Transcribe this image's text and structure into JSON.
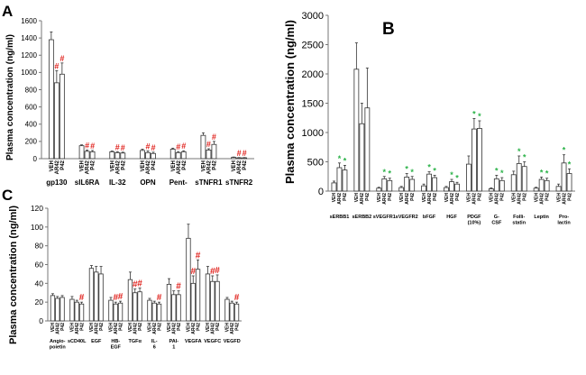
{
  "colors": {
    "hash": "#e0201b",
    "star": "#2db34a",
    "bar_stroke": "#333333",
    "error": "#333333"
  },
  "conditions": [
    "VEH",
    "AR42",
    "P42"
  ],
  "chart_data": [
    {
      "panel": "A",
      "type": "bar",
      "ylabel": "Plasma concentration (ng/ml)",
      "ylim": [
        0,
        1600
      ],
      "yticks": [
        0,
        200,
        400,
        600,
        800,
        1000,
        1200,
        1400,
        1600
      ],
      "categories": [
        "gp130",
        "sIL6RA",
        "IL-32",
        "OPN",
        "Pent-",
        "sTNFR1",
        "sTNFR2"
      ],
      "series": [
        {
          "name": "VEH",
          "values": [
            1380,
            150,
            80,
            95,
            110,
            270,
            15
          ],
          "errors": [
            90,
            10,
            8,
            15,
            12,
            30,
            4
          ]
        },
        {
          "name": "AR42",
          "values": [
            880,
            85,
            70,
            70,
            70,
            100,
            10
          ],
          "errors": [
            140,
            15,
            10,
            20,
            12,
            15,
            3
          ]
        },
        {
          "name": "P42",
          "values": [
            980,
            80,
            65,
            60,
            80,
            165,
            10
          ],
          "errors": [
            130,
            15,
            10,
            15,
            12,
            35,
            3
          ]
        }
      ],
      "markers": [
        {
          "cat": 0,
          "series": 1,
          "symbol": "#",
          "color": "hash"
        },
        {
          "cat": 0,
          "series": 2,
          "symbol": "#",
          "color": "hash"
        },
        {
          "cat": 1,
          "series": 1,
          "symbol": "#",
          "color": "hash"
        },
        {
          "cat": 1,
          "series": 2,
          "symbol": "#",
          "color": "hash"
        },
        {
          "cat": 2,
          "series": 1,
          "symbol": "#",
          "color": "hash"
        },
        {
          "cat": 2,
          "series": 2,
          "symbol": "#",
          "color": "hash"
        },
        {
          "cat": 3,
          "series": 1,
          "symbol": "#",
          "color": "hash"
        },
        {
          "cat": 3,
          "series": 2,
          "symbol": "#",
          "color": "hash"
        },
        {
          "cat": 4,
          "series": 1,
          "symbol": "#",
          "color": "hash"
        },
        {
          "cat": 4,
          "series": 2,
          "symbol": "#",
          "color": "hash"
        },
        {
          "cat": 5,
          "series": 1,
          "symbol": "#",
          "color": "hash"
        },
        {
          "cat": 5,
          "series": 2,
          "symbol": "#",
          "color": "hash"
        },
        {
          "cat": 6,
          "series": 1,
          "symbol": "#",
          "color": "hash"
        },
        {
          "cat": 6,
          "series": 2,
          "symbol": "#",
          "color": "hash"
        }
      ]
    },
    {
      "panel": "B",
      "type": "bar",
      "ylabel": "Plasma concentration (ng/ml)",
      "ylim": [
        0,
        3000
      ],
      "yticks": [
        0,
        500,
        1000,
        1500,
        2000,
        2500,
        3000
      ],
      "categories": [
        "sERBB1",
        "sERBB2",
        "sVEGFR1",
        "sVEGFR2",
        "bFGF",
        "HGF",
        "PDGF (10%)",
        "G-CSF",
        "Folli-statin",
        "Leptin",
        "Pro-lactin"
      ],
      "series": [
        {
          "name": "VEH",
          "values": [
            140,
            2080,
            50,
            60,
            90,
            60,
            460,
            40,
            280,
            50,
            80
          ],
          "errors": [
            30,
            450,
            15,
            20,
            30,
            20,
            140,
            15,
            60,
            15,
            40
          ]
        },
        {
          "name": "AR42",
          "values": [
            400,
            1150,
            210,
            240,
            290,
            160,
            1060,
            210,
            470,
            200,
            480
          ],
          "errors": [
            80,
            350,
            40,
            60,
            40,
            40,
            180,
            60,
            130,
            40,
            140
          ]
        },
        {
          "name": "P42",
          "values": [
            360,
            1420,
            180,
            200,
            230,
            120,
            1070,
            180,
            420,
            180,
            300
          ],
          "errors": [
            80,
            680,
            40,
            50,
            40,
            30,
            130,
            50,
            80,
            40,
            80
          ]
        }
      ],
      "markers": [
        {
          "cat": 0,
          "series": 1,
          "symbol": "*",
          "color": "star"
        },
        {
          "cat": 0,
          "series": 2,
          "symbol": "*",
          "color": "star"
        },
        {
          "cat": 2,
          "series": 1,
          "symbol": "*",
          "color": "star"
        },
        {
          "cat": 2,
          "series": 2,
          "symbol": "*",
          "color": "star"
        },
        {
          "cat": 3,
          "series": 1,
          "symbol": "*",
          "color": "star"
        },
        {
          "cat": 3,
          "series": 2,
          "symbol": "*",
          "color": "star"
        },
        {
          "cat": 4,
          "series": 1,
          "symbol": "*",
          "color": "star"
        },
        {
          "cat": 4,
          "series": 2,
          "symbol": "*",
          "color": "star"
        },
        {
          "cat": 5,
          "series": 1,
          "symbol": "*",
          "color": "star"
        },
        {
          "cat": 5,
          "series": 2,
          "symbol": "*",
          "color": "star"
        },
        {
          "cat": 6,
          "series": 1,
          "symbol": "*",
          "color": "star"
        },
        {
          "cat": 6,
          "series": 2,
          "symbol": "*",
          "color": "star"
        },
        {
          "cat": 7,
          "series": 1,
          "symbol": "*",
          "color": "star"
        },
        {
          "cat": 7,
          "series": 2,
          "symbol": "*",
          "color": "star"
        },
        {
          "cat": 8,
          "series": 1,
          "symbol": "*",
          "color": "star"
        },
        {
          "cat": 8,
          "series": 2,
          "symbol": "*",
          "color": "star"
        },
        {
          "cat": 9,
          "series": 1,
          "symbol": "*",
          "color": "star"
        },
        {
          "cat": 9,
          "series": 2,
          "symbol": "*",
          "color": "star"
        },
        {
          "cat": 10,
          "series": 1,
          "symbol": "*",
          "color": "star"
        },
        {
          "cat": 10,
          "series": 2,
          "symbol": "*",
          "color": "star"
        }
      ]
    },
    {
      "panel": "C",
      "type": "bar",
      "ylabel": "Plasma concentration (ng/ml)",
      "ylim": [
        0,
        120
      ],
      "yticks": [
        0,
        20,
        40,
        60,
        80,
        100,
        120
      ],
      "categories": [
        "Angio-poietin",
        "sCD40L",
        "EGF",
        "HB-EGF",
        "TGFα",
        "IL-6",
        "PAI-1",
        "VEGFA",
        "VEGFC",
        "VEGFD"
      ],
      "series": [
        {
          "name": "VEH",
          "values": [
            27,
            23,
            56,
            22,
            44,
            22,
            39,
            88,
            50,
            23
          ],
          "errors": [
            2,
            3,
            3,
            3,
            8,
            2,
            6,
            15,
            8,
            2
          ]
        },
        {
          "name": "AR42",
          "values": [
            24,
            20,
            52,
            18,
            30,
            19,
            28,
            40,
            42,
            19
          ],
          "errors": [
            2,
            2,
            6,
            2,
            4,
            2,
            4,
            8,
            6,
            2
          ]
        },
        {
          "name": "P42",
          "values": [
            25,
            18,
            50,
            19,
            31,
            18,
            28,
            55,
            42,
            18
          ],
          "errors": [
            2,
            2,
            8,
            2,
            4,
            2,
            4,
            10,
            7,
            2
          ]
        }
      ],
      "markers": [
        {
          "cat": 1,
          "series": 2,
          "symbol": "#",
          "color": "hash"
        },
        {
          "cat": 3,
          "series": 1,
          "symbol": "#",
          "color": "hash"
        },
        {
          "cat": 3,
          "series": 2,
          "symbol": "#",
          "color": "hash"
        },
        {
          "cat": 4,
          "series": 1,
          "symbol": "#",
          "color": "hash"
        },
        {
          "cat": 4,
          "series": 2,
          "symbol": "#",
          "color": "hash"
        },
        {
          "cat": 5,
          "series": 2,
          "symbol": "#",
          "color": "hash"
        },
        {
          "cat": 6,
          "series": 2,
          "symbol": "#",
          "color": "hash"
        },
        {
          "cat": 7,
          "series": 1,
          "symbol": "#",
          "color": "hash"
        },
        {
          "cat": 7,
          "series": 2,
          "symbol": "#",
          "color": "hash"
        },
        {
          "cat": 8,
          "series": 1,
          "symbol": "#",
          "color": "hash"
        },
        {
          "cat": 8,
          "series": 2,
          "symbol": "#",
          "color": "hash"
        },
        {
          "cat": 9,
          "series": 2,
          "symbol": "#",
          "color": "hash"
        }
      ]
    }
  ]
}
